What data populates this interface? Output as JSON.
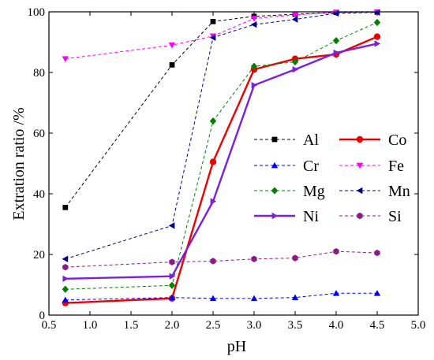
{
  "chart_data": {
    "type": "line",
    "title": "",
    "xlabel": "pH",
    "ylabel": "Extration ratio /%",
    "xlim": [
      0.5,
      5.0
    ],
    "ylim": [
      0,
      100
    ],
    "xticks": [
      "0.5",
      "1.0",
      "1.5",
      "2.0",
      "2.5",
      "3.0",
      "3.5",
      "4.0",
      "4.5",
      "5.0"
    ],
    "yticks": [
      "0",
      "20",
      "40",
      "60",
      "80",
      "100"
    ],
    "grid": false,
    "legend_position": "right",
    "x": [
      0.7,
      2.0,
      2.5,
      3.0,
      3.5,
      4.0,
      4.5
    ],
    "series": [
      {
        "name": "Al",
        "values": [
          35.5,
          82.5,
          96.8,
          98.5,
          99.2,
          99.8,
          99.9
        ],
        "color": "#000000",
        "marker": "square",
        "dashed": true
      },
      {
        "name": "Co",
        "values": [
          4.0,
          5.5,
          50.5,
          81.0,
          84.5,
          86.0,
          91.8
        ],
        "color": "#ee0000",
        "marker": "circle",
        "dashed": false
      },
      {
        "name": "Cr",
        "values": [
          5.0,
          5.8,
          5.5,
          5.5,
          5.8,
          7.2,
          7.2
        ],
        "color": "#0000ff",
        "marker": "triangle-up",
        "dashed": true
      },
      {
        "name": "Fe",
        "values": [
          84.5,
          89.0,
          92.0,
          97.8,
          99.0,
          99.8,
          99.9
        ],
        "color": "#ff00ff",
        "marker": "triangle-down",
        "dashed": true
      },
      {
        "name": "Mg",
        "values": [
          8.5,
          9.8,
          64.0,
          82.0,
          83.5,
          90.5,
          96.5
        ],
        "color": "#008000",
        "marker": "diamond",
        "dashed": true
      },
      {
        "name": "Mn",
        "values": [
          18.5,
          29.5,
          91.5,
          95.8,
          97.5,
          99.5,
          99.8
        ],
        "color": "#00008b",
        "marker": "triangle-left",
        "dashed": true
      },
      {
        "name": "Ni",
        "values": [
          12.0,
          12.8,
          37.5,
          75.8,
          81.0,
          86.5,
          89.5
        ],
        "color": "#7b1fe0",
        "marker": "triangle-right",
        "dashed": false
      },
      {
        "name": "Si",
        "values": [
          15.8,
          17.5,
          17.8,
          18.5,
          18.8,
          21.0,
          20.5
        ],
        "color": "#8b1a89",
        "marker": "hexagon",
        "dashed": true
      }
    ]
  }
}
